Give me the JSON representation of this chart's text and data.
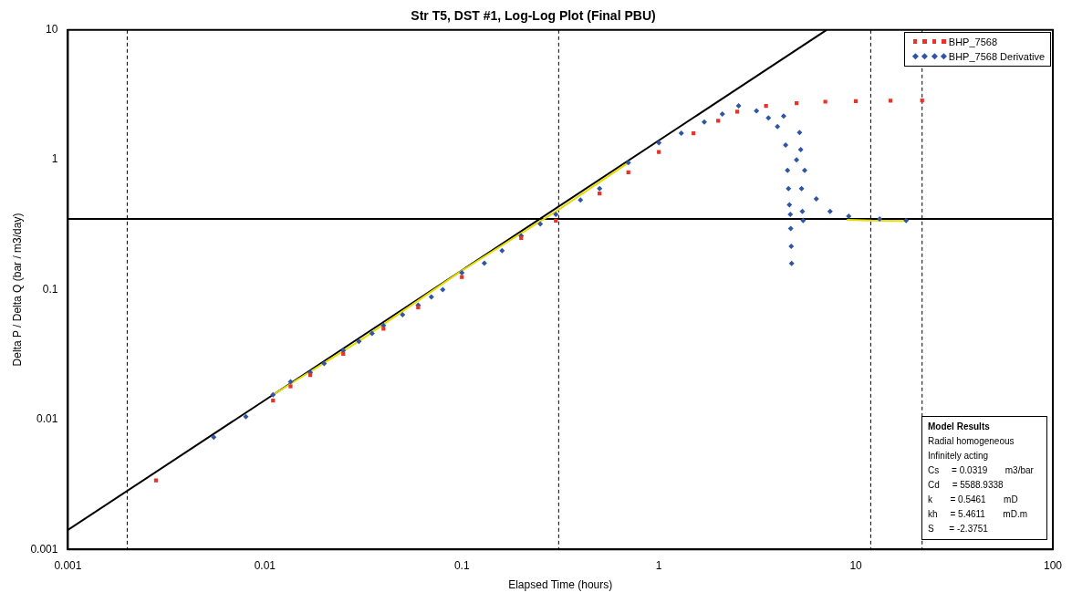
{
  "chart_data": {
    "type": "scatter",
    "title": "Str T5, DST #1, Log-Log Plot (Final PBU)",
    "xlabel": "Elapsed Time (hours)",
    "ylabel": "Delta P / Delta Q (bar / m3/day)",
    "log": "xy",
    "grid": false,
    "legend": "top right",
    "xlim": [
      0.001,
      100
    ],
    "ylim": [
      0.001,
      10
    ],
    "xticks": [
      0.001,
      0.01,
      0.1,
      1,
      10,
      100
    ],
    "yticks": [
      0.001,
      0.01,
      0.1,
      1,
      10
    ],
    "series": [
      {
        "name": "BHP_7568",
        "color": "#e8332a",
        "marker": "square",
        "x": [
          0.0028,
          0.011,
          0.0135,
          0.017,
          0.025,
          0.04,
          0.06,
          0.1,
          0.2,
          0.3,
          0.5,
          0.7,
          1,
          1.5,
          2,
          2.5,
          3.5,
          5,
          7,
          10,
          15,
          21.7
        ],
        "values": [
          0.0034,
          0.014,
          0.018,
          0.022,
          0.032,
          0.05,
          0.073,
          0.125,
          0.25,
          0.34,
          0.55,
          0.8,
          1.15,
          1.6,
          2.0,
          2.35,
          2.6,
          2.73,
          2.8,
          2.83,
          2.85,
          2.86
        ]
      },
      {
        "name": "BHP_7568 Derivative",
        "color": "#2e55a6",
        "marker": "diamond",
        "x": [
          0.0055,
          0.008,
          0.011,
          0.0135,
          0.017,
          0.02,
          0.025,
          0.03,
          0.035,
          0.04,
          0.05,
          0.06,
          0.07,
          0.08,
          0.1,
          0.13,
          0.16,
          0.2,
          0.25,
          0.3,
          0.4,
          0.5,
          0.7,
          1,
          1.3,
          1.7,
          2.1,
          2.54,
          3.13,
          3.6,
          4.0,
          4.3,
          4.4,
          4.5,
          4.55,
          4.6,
          4.65,
          4.67,
          4.7,
          4.72,
          5.0,
          5.18,
          5.25,
          5.3,
          5.35,
          5.4,
          5.5,
          6.3,
          7.4,
          9.2,
          13.2,
          18
        ],
        "values": [
          0.0073,
          0.0105,
          0.0155,
          0.0195,
          0.023,
          0.027,
          0.034,
          0.04,
          0.046,
          0.053,
          0.064,
          0.076,
          0.088,
          0.1,
          0.135,
          0.16,
          0.2,
          0.26,
          0.32,
          0.38,
          0.49,
          0.6,
          0.95,
          1.35,
          1.6,
          1.95,
          2.25,
          2.6,
          2.38,
          2.1,
          1.8,
          2.17,
          1.3,
          0.83,
          0.6,
          0.45,
          0.38,
          0.295,
          0.216,
          0.159,
          1.0,
          1.62,
          1.2,
          0.6,
          0.4,
          0.34,
          0.83,
          0.5,
          0.4,
          0.367,
          0.35,
          0.34
        ]
      },
      {
        "type": "line",
        "color": "#e6dc00",
        "x": [
          0.011,
          0.03,
          0.1,
          0.3,
          0.7,
          5.5,
          9,
          12,
          18
        ],
        "values": [
          0.0155,
          0.04,
          0.14,
          0.4,
          0.95,
          null,
          0.345,
          0.34,
          0.338
        ]
      },
      {
        "type": "line",
        "color": "#000000",
        "x": [
          0.001,
          7.1
        ],
        "values": [
          0.00141,
          10
        ]
      }
    ],
    "ref_lines": [
      {
        "axis": "y",
        "value": 0.35,
        "color": "#000000",
        "line_style": "solid"
      },
      {
        "axis": "x",
        "value": 0.002,
        "color": "#000000",
        "line_style": "dashed"
      },
      {
        "axis": "x",
        "value": 0.31,
        "color": "#000000",
        "line_style": "dashed"
      },
      {
        "axis": "x",
        "value": 11.9,
        "color": "#000000",
        "line_style": "dashed"
      },
      {
        "axis": "x",
        "value": 21.7,
        "color": "#000000",
        "line_style": "dashed"
      }
    ],
    "annotations": [
      "Model Results",
      "Radial homogeneous",
      "Infinitely acting",
      "Cs     = 0.0319       m3/bar",
      "Cd     = 5588.9338",
      "k       = 0.5461       mD",
      "kh     = 5.4611       mD.m",
      "S      = -2.3751"
    ]
  }
}
